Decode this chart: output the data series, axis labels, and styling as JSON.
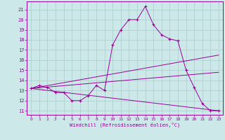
{
  "xlabel": "Windchill (Refroidissement éolien,°C)",
  "bg_color": "#cce8e8",
  "grid_color": "#aacccc",
  "line_color": "#990099",
  "xlim": [
    -0.5,
    23.5
  ],
  "ylim": [
    10.6,
    21.8
  ],
  "yticks": [
    11,
    12,
    13,
    14,
    15,
    16,
    17,
    18,
    19,
    20,
    21
  ],
  "xticks": [
    0,
    1,
    2,
    3,
    4,
    5,
    6,
    7,
    8,
    9,
    10,
    11,
    12,
    13,
    14,
    15,
    16,
    17,
    18,
    19,
    20,
    21,
    22,
    23
  ],
  "series_main": {
    "x": [
      0,
      1,
      2,
      3,
      4,
      5,
      6,
      7,
      8,
      9,
      10,
      11,
      12,
      13,
      14,
      15,
      16,
      17,
      18,
      19,
      20,
      21,
      22,
      23
    ],
    "y": [
      13.2,
      13.5,
      13.3,
      12.8,
      12.8,
      12.0,
      12.0,
      12.5,
      13.5,
      13.0,
      17.5,
      19.0,
      20.0,
      20.0,
      21.3,
      19.5,
      18.5,
      18.1,
      17.9,
      15.0,
      13.3,
      11.7,
      11.0,
      11.0
    ]
  },
  "trend_lines": [
    {
      "x": [
        0,
        23
      ],
      "y": [
        13.2,
        16.5
      ]
    },
    {
      "x": [
        0,
        23
      ],
      "y": [
        13.2,
        14.8
      ]
    },
    {
      "x": [
        0,
        23
      ],
      "y": [
        13.2,
        11.0
      ]
    }
  ]
}
